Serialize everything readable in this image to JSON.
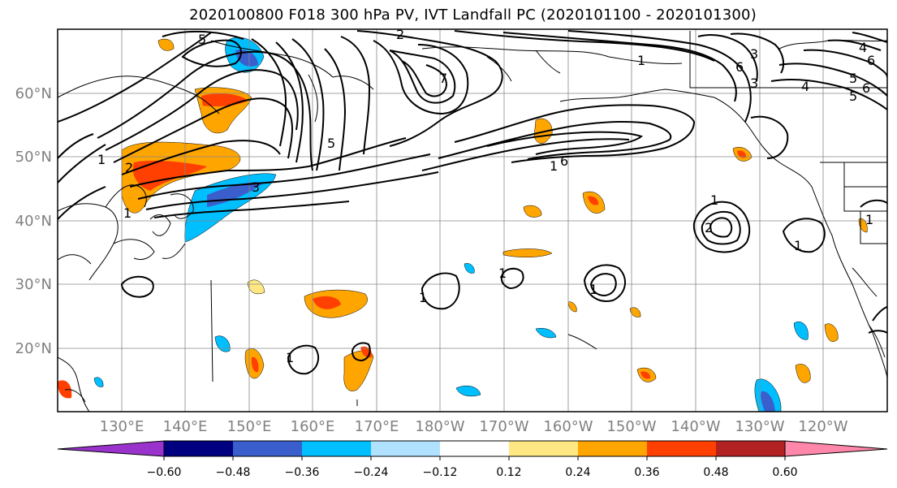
{
  "map": {
    "title": "2020100800 F018 300 hPa PV, IVT Landfall PC (2020101100 - 2020101300)",
    "latitude_labels": [
      "60°N",
      "50°N",
      "40°N",
      "30°N",
      "20°N"
    ],
    "longitude_labels": [
      "130°E",
      "140°E",
      "150°E",
      "160°E",
      "170°E",
      "180°W",
      "170°W",
      "160°W",
      "150°W",
      "140°W",
      "130°W",
      "120°W"
    ],
    "contour_labels": [
      "5",
      "2",
      "1",
      "7",
      "6",
      "3",
      "4",
      "5",
      "1",
      "2",
      "1",
      "5",
      "6",
      "1",
      "3",
      "1",
      "2",
      "1",
      "1",
      "1",
      "1",
      "1",
      "3",
      "5",
      "6",
      "1",
      "4",
      "6"
    ],
    "shading_colors": {
      "neg_1": "#9933cc",
      "neg_2": "#000080",
      "neg_3": "#3a5fcd",
      "neg_4": "#00bfff",
      "neg_5": "#b0e2ff",
      "neutral": "#ffffff",
      "pos_1": "#ffe883",
      "pos_2": "#ffa500",
      "pos_3": "#ff4000",
      "pos_4": "#b22222",
      "pos_5": "#ff88aa"
    }
  },
  "colorbar": {
    "tick_labels": [
      "−0.60",
      "−0.48",
      "−0.36",
      "−0.24",
      "−0.12",
      "0.12",
      "0.24",
      "0.36",
      "0.48",
      "0.60"
    ],
    "colors": [
      "#9933cc",
      "#000080",
      "#3a5fcd",
      "#00bfff",
      "#b0e2ff",
      "#ffffff",
      "#ffe883",
      "#ffa500",
      "#ff4000",
      "#b22222",
      "#ff88aa"
    ]
  }
}
